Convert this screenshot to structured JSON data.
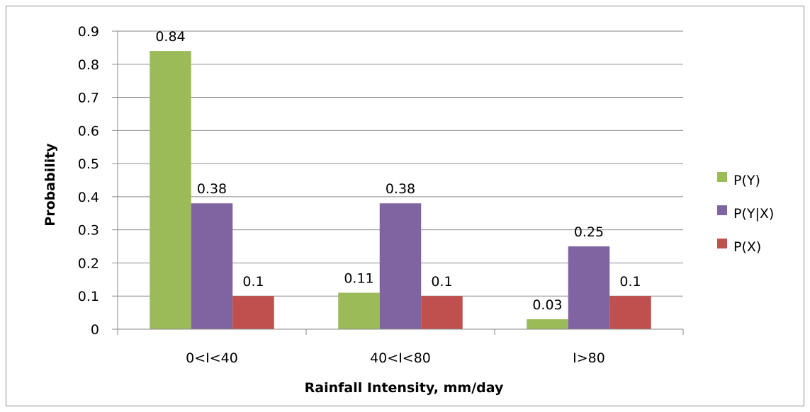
{
  "chart_data": {
    "type": "bar",
    "title": "",
    "xlabel": "Rainfall Intensity, mm/day",
    "ylabel": "Probability",
    "categories": [
      "0<I<40",
      "40<I<80",
      "I>80"
    ],
    "series": [
      {
        "name": "P(Y)",
        "values": [
          0.84,
          0.11,
          0.03
        ],
        "labels": [
          "0.84",
          "0.11",
          "0.03"
        ],
        "color": "#9bbb59"
      },
      {
        "name": "P(Y|X)",
        "values": [
          0.38,
          0.38,
          0.25
        ],
        "labels": [
          "0.38",
          "0.38",
          "0.25"
        ],
        "color": "#8064a2"
      },
      {
        "name": "P(X)",
        "values": [
          0.1,
          0.1,
          0.1
        ],
        "labels": [
          "0.1",
          "0.1",
          "0.1"
        ],
        "color": "#c0504d"
      }
    ],
    "ylim": [
      0,
      0.9
    ],
    "yticks": [
      "0",
      "0.1",
      "0.2",
      "0.3",
      "0.4",
      "0.5",
      "0.6",
      "0.7",
      "0.8",
      "0.9"
    ],
    "grid": true,
    "legend_position": "right"
  }
}
